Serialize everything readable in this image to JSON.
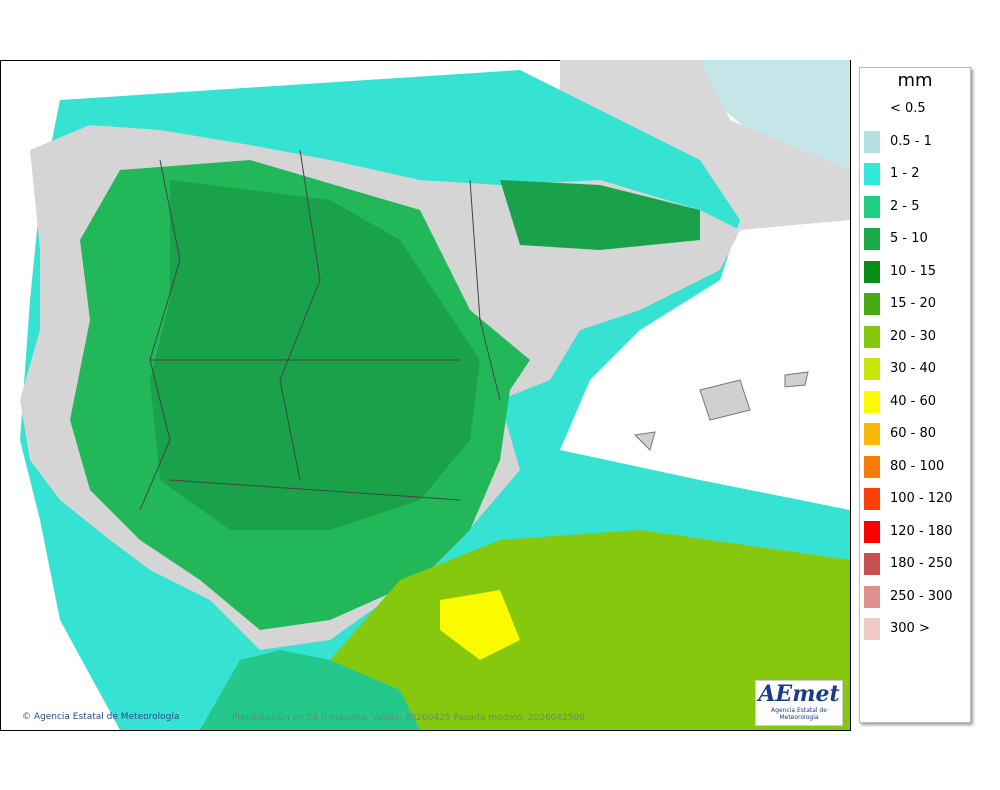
{
  "legend": {
    "title": "mm",
    "items": [
      {
        "label": "< 0.5"
      },
      {
        "label": "0.5 - 1",
        "color": "#b4dfe0"
      },
      {
        "label": "1 - 2",
        "color": "#2ee8d8"
      },
      {
        "label": "2 - 5",
        "color": "#1fcf85"
      },
      {
        "label": "5 - 10",
        "color": "#1aaa4a"
      },
      {
        "label": "10 - 15",
        "color": "#0a8f14"
      },
      {
        "label": "15 - 20",
        "color": "#46ac14"
      },
      {
        "label": "20 - 30",
        "color": "#86c80e"
      },
      {
        "label": "30 - 40",
        "color": "#c8e60a"
      },
      {
        "label": "40 - 60",
        "color": "#fafa00"
      },
      {
        "label": "60 - 80",
        "color": "#fab90a"
      },
      {
        "label": "80 - 100",
        "color": "#fa7d0a"
      },
      {
        "label": "100 - 120",
        "color": "#fa410a"
      },
      {
        "label": "120 - 180",
        "color": "#fa0000"
      },
      {
        "label": "180 - 250",
        "color": "#c85050"
      },
      {
        "label": "250 - 300",
        "color": "#e09090"
      },
      {
        "label": "300 >",
        "color": "#f0c8c8"
      }
    ]
  },
  "footer": {
    "agency": "© Agencia Estatal de Meteorología",
    "caption": "Precipitación en 24 h máxima. Válido: 20260425 Pasada modelo: 2026042500"
  },
  "logo": {
    "name": "AEmet",
    "subtitle": "Agencia Estatal de Meteorología"
  }
}
